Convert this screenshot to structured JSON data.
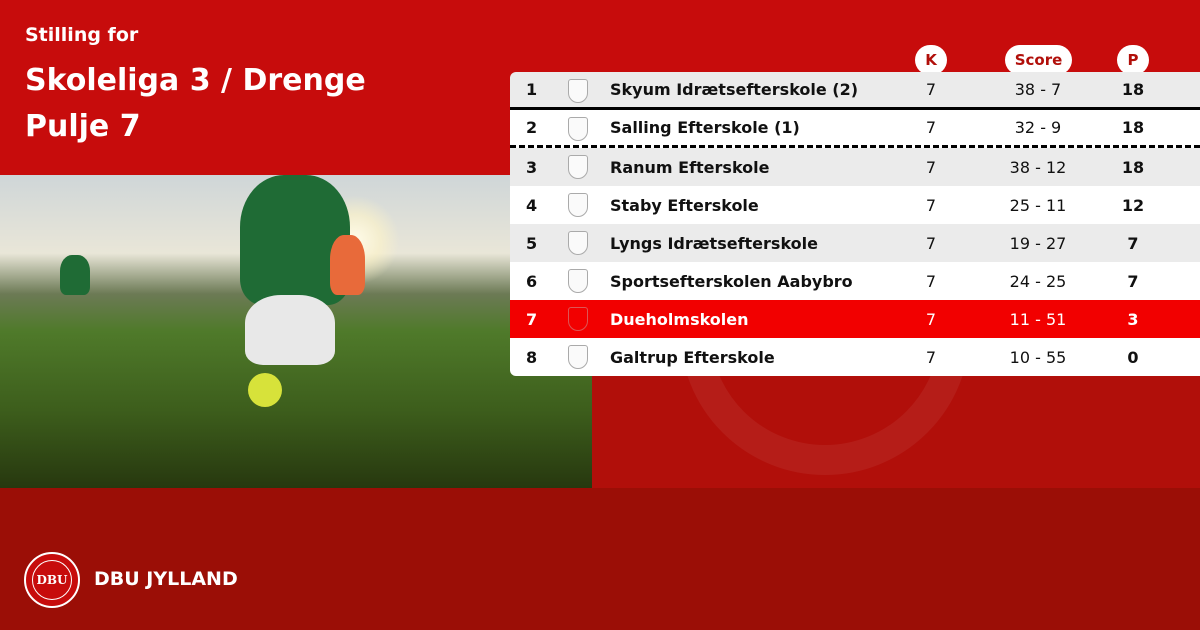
{
  "header": {
    "subtitle": "Stilling for",
    "title_line1": "Skoleliga 3 / Drenge",
    "title_line2": "Pulje 7"
  },
  "columns": {
    "k": "K",
    "score": "Score",
    "p": "P"
  },
  "rows": [
    {
      "rank": "1",
      "name": "Skyum Idrætsefterskole (2)",
      "k": "7",
      "score": "38 - 7",
      "p": "18"
    },
    {
      "rank": "2",
      "name": "Salling Efterskole (1)",
      "k": "7",
      "score": "32 - 9",
      "p": "18"
    },
    {
      "rank": "3",
      "name": "Ranum Efterskole",
      "k": "7",
      "score": "38 - 12",
      "p": "18"
    },
    {
      "rank": "4",
      "name": "Staby Efterskole",
      "k": "7",
      "score": "25 - 11",
      "p": "12"
    },
    {
      "rank": "5",
      "name": "Lyngs Idrætsefterskole",
      "k": "7",
      "score": "19 - 27",
      "p": "7"
    },
    {
      "rank": "6",
      "name": "Sportsefterskolen Aabybro",
      "k": "7",
      "score": "24 - 25",
      "p": "7"
    },
    {
      "rank": "7",
      "name": "Dueholmskolen",
      "k": "7",
      "score": "11 - 51",
      "p": "3"
    },
    {
      "rank": "8",
      "name": "Galtrup Efterskole",
      "k": "7",
      "score": "10 - 55",
      "p": "0"
    }
  ],
  "highlight_row": "7",
  "footer": {
    "brand": "DBU JYLLAND",
    "logo_text": "DBU"
  },
  "colors": {
    "primary": "#c70c0c",
    "highlight": "#f20000",
    "footer": "#9b0e06"
  }
}
